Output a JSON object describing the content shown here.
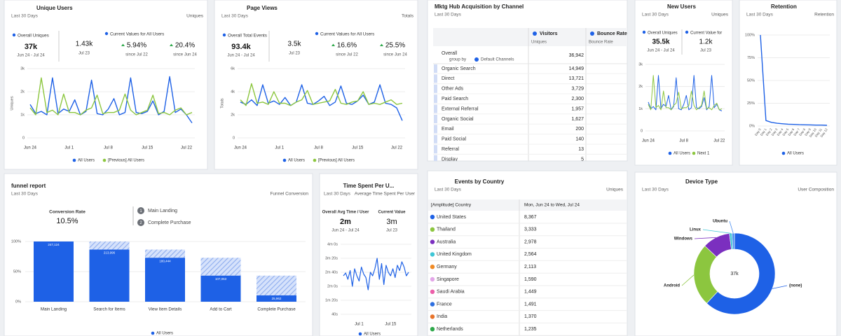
{
  "unique_users": {
    "title": "Unique Users",
    "subtitle": "Last 30 Days",
    "metric_label": "Uniques",
    "overall": {
      "label": "Overall Uniques",
      "value": "37k",
      "range": "Jun 24 - Jul 24"
    },
    "current": {
      "label": "Current Values for All Users",
      "value": "1.43k",
      "date": "Jul 23"
    },
    "changes": [
      {
        "value": "5.94%",
        "since": "since Jul 22"
      },
      {
        "value": "20.4%",
        "since": "since Jun 24"
      }
    ],
    "chart": {
      "type": "line",
      "y_label": "Uniques",
      "categories": [
        "Jun 24",
        null,
        null,
        null,
        null,
        null,
        null,
        "Jul 1",
        null,
        null,
        null,
        null,
        null,
        null,
        "Jul 8",
        null,
        null,
        null,
        null,
        null,
        null,
        "Jul 15",
        null,
        null,
        null,
        null,
        null,
        null,
        "Jul 22",
        null
      ],
      "ylim": [
        0,
        3000
      ],
      "yticks": [
        0,
        {
          "value": 1000,
          "label": "1k"
        },
        {
          "value": 2000,
          "label": "2k"
        },
        {
          "value": 3000,
          "label": "3k"
        }
      ],
      "grid": true,
      "series": [
        {
          "name": "All Users",
          "color": "#1e61e6",
          "values": [
            1450,
            1050,
            1150,
            1000,
            2600,
            1050,
            1250,
            1150,
            1650,
            1000,
            1150,
            2500,
            1050,
            1000,
            1250,
            1700,
            1000,
            1100,
            2600,
            1100,
            1050,
            1150,
            1600,
            1000,
            1150,
            2650,
            1100,
            1250,
            1000,
            650
          ]
        },
        {
          "name": "[Previous] All Users",
          "color": "#8cc63f",
          "values": [
            1300,
            1000,
            2600,
            1100,
            1200,
            1000,
            1900,
            1100,
            1100,
            1000,
            1200,
            1300,
            1850,
            1050,
            1100,
            1100,
            1200,
            1900,
            1200,
            1000,
            1100,
            1200,
            1850,
            1050,
            1100,
            1000,
            1200,
            1300,
            1000,
            1100
          ]
        }
      ]
    }
  },
  "page_views": {
    "title": "Page Views",
    "subtitle": "Last 30 Days",
    "metric_label": "Totals",
    "overall": {
      "label": "Overall Total Events",
      "value": "93.4k",
      "range": "Jun 24 - Jul 24"
    },
    "current": {
      "label": "Current Values for All Users",
      "value": "3.5k",
      "date": "Jul 23"
    },
    "changes": [
      {
        "value": "16.6%",
        "since": "since Jul 22"
      },
      {
        "value": "25.5%",
        "since": "since Jun 24"
      }
    ],
    "chart": {
      "type": "line",
      "y_label": "Totals",
      "categories": [
        "Jun 24",
        null,
        null,
        null,
        null,
        null,
        null,
        "Jul 1",
        null,
        null,
        null,
        null,
        null,
        null,
        "Jul 8",
        null,
        null,
        null,
        null,
        null,
        null,
        "Jul 15",
        null,
        null,
        null,
        null,
        null,
        null,
        "Jul 22",
        null
      ],
      "ylim": [
        0,
        6000
      ],
      "yticks": [
        0,
        {
          "value": 2000,
          "label": "2k"
        },
        {
          "value": 4000,
          "label": "4k"
        },
        {
          "value": 6000,
          "label": "6k"
        }
      ],
      "grid": true,
      "series": [
        {
          "name": "All Users",
          "color": "#1e61e6",
          "values": [
            3100,
            2900,
            3300,
            2800,
            4600,
            3000,
            3200,
            2900,
            3500,
            2800,
            3100,
            4600,
            3000,
            2900,
            3200,
            3600,
            2800,
            3100,
            4500,
            3000,
            2900,
            3200,
            3700,
            2900,
            3100,
            4600,
            3000,
            2900,
            2600,
            1500
          ]
        },
        {
          "name": "[Previous] All Users",
          "color": "#8cc63f",
          "values": [
            3300,
            2800,
            4700,
            3000,
            3100,
            2900,
            4000,
            3000,
            3000,
            2800,
            3100,
            3300,
            4100,
            2900,
            3000,
            3100,
            3200,
            4200,
            3000,
            2900,
            3100,
            3200,
            4000,
            2900,
            3000,
            2900,
            3100,
            3300,
            2900,
            3000
          ]
        }
      ]
    }
  },
  "acquisition": {
    "title": "Mktg Hub Acquisition by Channel",
    "subtitle": "Last 30 Days",
    "columns": [
      {
        "name": "Visitors",
        "sub": "Uniques"
      },
      {
        "name": "Bounce Rate",
        "sub": "Bounce Rate"
      }
    ],
    "overall": {
      "label": "Overall",
      "group_by": "group by",
      "group": "Default Channels",
      "value": "36,942"
    },
    "rows": [
      {
        "name": "Organic Search",
        "value": "14,949"
      },
      {
        "name": "Direct",
        "value": "13,721"
      },
      {
        "name": "Other Ads",
        "value": "3,729"
      },
      {
        "name": "Paid Search",
        "value": "2,300"
      },
      {
        "name": "External Referral",
        "value": "1,957"
      },
      {
        "name": "Organic Social",
        "value": "1,627"
      },
      {
        "name": "Email",
        "value": "200"
      },
      {
        "name": "Paid Social",
        "value": "140"
      },
      {
        "name": "Referral",
        "value": "13"
      },
      {
        "name": "Display",
        "value": "5"
      }
    ]
  },
  "new_users": {
    "title": "New Users",
    "subtitle": "Last 30 Days",
    "metric_label": "Uniques",
    "overall": {
      "label": "Overall Uniques",
      "value": "35.5k",
      "range": "Jun 24 - Jul 24"
    },
    "current": {
      "label": "Current Value for",
      "value": "1.2k",
      "date": "Jul 23"
    },
    "chart": {
      "type": "line",
      "categories": [
        "Jun 24",
        null,
        null,
        null,
        null,
        null,
        null,
        null,
        null,
        null,
        null,
        null,
        null,
        null,
        "Jul 8",
        null,
        null,
        null,
        null,
        null,
        null,
        null,
        null,
        null,
        null,
        null,
        null,
        null,
        "Jul 22",
        null
      ],
      "ylim": [
        0,
        3000
      ],
      "yticks": [
        0,
        {
          "value": 1000,
          "label": "1k"
        },
        {
          "value": 2000,
          "label": "2k"
        },
        {
          "value": 3000,
          "label": "3k"
        }
      ],
      "grid": true,
      "series": [
        {
          "name": "All Users",
          "color": "#1e61e6",
          "values": [
            1300,
            1000,
            1100,
            950,
            2500,
            1000,
            1200,
            1100,
            1600,
            950,
            1100,
            2400,
            1000,
            950,
            1200,
            1600,
            950,
            1050,
            2500,
            1050,
            1000,
            1100,
            1500,
            950,
            1100,
            2500,
            1050,
            1200,
            950,
            900
          ]
        },
        {
          "name": "Next 1",
          "color": "#8cc63f",
          "values": [
            1200,
            950,
            2500,
            1050,
            1150,
            950,
            1800,
            1050,
            1050,
            950,
            1150,
            1250,
            1750,
            1000,
            1050,
            1050,
            1150,
            1800,
            1150,
            950,
            1050,
            1150,
            1800,
            1000,
            1050,
            950,
            1150,
            1250,
            950,
            1000
          ]
        }
      ]
    }
  },
  "retention": {
    "title": "Retention",
    "subtitle": "Last 30 Days",
    "metric_label": "Retention",
    "chart": {
      "type": "line",
      "categories": [
        "Day 0",
        "Day 1",
        "Day 2",
        "Day 3",
        "Day 4",
        "Day 5",
        "Day 6",
        "Day 7",
        "Day 8",
        "Day 9",
        "Day 10",
        "Day 11",
        "Day 12"
      ],
      "ylim": [
        0,
        100
      ],
      "yticks": [
        {
          "value": 0,
          "label": "0%"
        },
        {
          "value": 25,
          "label": "25%"
        },
        {
          "value": 50,
          "label": "50%"
        },
        {
          "value": 75,
          "label": "75%"
        },
        {
          "value": 100,
          "label": "100%"
        }
      ],
      "grid": true,
      "series": [
        {
          "name": "All Users",
          "color": "#1e61e6",
          "values": [
            100,
            6,
            4,
            3,
            2.5,
            2,
            1.8,
            1.5,
            1.3,
            1.2,
            1,
            1,
            0.8
          ]
        }
      ]
    }
  },
  "funnel": {
    "title": "funnel report",
    "subtitle": "Last 30 Days",
    "metric_label": "Funnel Conversion",
    "conversion": {
      "label": "Conversion Rate",
      "value": "10.5%"
    },
    "steps": [
      {
        "number": "1",
        "label": "Main Landing"
      },
      {
        "number": "2",
        "label": "Complete Purchase"
      }
    ],
    "chart": {
      "type": "bar",
      "categories": [
        "Main Landing",
        "Search for Items",
        "View Item Details",
        "Add to Cart",
        "Complete Purchase"
      ],
      "values": [
        100,
        86.6,
        73,
        43.3,
        10.5
      ],
      "count_labels": [
        "247,124",
        "213,996",
        "180,444",
        "107,063",
        "25,962"
      ],
      "ylim": [
        0,
        100
      ],
      "yticks": [
        {
          "value": 0,
          "label": "0%"
        },
        {
          "value": 50,
          "label": "50%"
        },
        {
          "value": 100,
          "label": "100%"
        }
      ],
      "grid": true,
      "color": "#1e61e6",
      "series_name": "All Users"
    }
  },
  "time_spent": {
    "title": "Time Spent Per U...",
    "subtitle": "Last 30 Days",
    "metric_label": "Average Time Spent Per User",
    "overall": {
      "label": "Overall Avg Time / User",
      "value": "2m",
      "range": "Jun 24 - Jul 24"
    },
    "current": {
      "label": "Current Value",
      "value": "3m",
      "date": "Jul 23"
    },
    "chart": {
      "type": "line",
      "categories": [
        null,
        null,
        null,
        null,
        null,
        null,
        null,
        "Jul 1",
        null,
        null,
        null,
        null,
        null,
        null,
        null,
        null,
        null,
        null,
        null,
        null,
        null,
        "Jul 15",
        null,
        null,
        null,
        null,
        null,
        null,
        null,
        null
      ],
      "ylim": [
        40,
        240
      ],
      "yticks": [
        {
          "value": 40,
          "label": "40s"
        },
        {
          "value": 80,
          "label": "1m 20s"
        },
        {
          "value": 120,
          "label": "2m 0s"
        },
        {
          "value": 160,
          "label": "2m 40s"
        },
        {
          "value": 200,
          "label": "3m 20s"
        },
        {
          "value": 240,
          "label": "4m 0s"
        }
      ],
      "grid": true,
      "series": [
        {
          "name": "All Users",
          "color": "#1e61e6",
          "values": [
            150,
            158,
            140,
            165,
            120,
            170,
            150,
            135,
            175,
            155,
            145,
            110,
            160,
            150,
            170,
            200,
            140,
            185,
            125,
            180,
            160,
            150,
            170,
            145,
            180,
            165,
            190,
            175,
            150,
            160
          ]
        }
      ]
    }
  },
  "events_by_country": {
    "title": "Events by Country",
    "subtitle": "Last 30 Days",
    "metric_label": "Uniques",
    "columns": [
      "[Amplitude] Country",
      "Mon, Jun 24 to Wed, Jul 24"
    ],
    "rows": [
      {
        "name": "United States",
        "value": "8,367",
        "color": "#1e61e6"
      },
      {
        "name": "Thailand",
        "value": "3,333",
        "color": "#8cc63f"
      },
      {
        "name": "Australia",
        "value": "2,978",
        "color": "#7b2fbf"
      },
      {
        "name": "United Kingdom",
        "value": "2,564",
        "color": "#3fc6d6"
      },
      {
        "name": "Germany",
        "value": "2,113",
        "color": "#f08a24"
      },
      {
        "name": "Singapore",
        "value": "1,590",
        "color": "#e3a6e8"
      },
      {
        "name": "Saudi Arabia",
        "value": "1,449",
        "color": "#ec5fa9"
      },
      {
        "name": "France",
        "value": "1,491",
        "color": "#2d6fe0"
      },
      {
        "name": "India",
        "value": "1,370",
        "color": "#e8732a"
      },
      {
        "name": "Netherlands",
        "value": "1,235",
        "color": "#2ea84a"
      }
    ]
  },
  "device_type": {
    "title": "Device Type",
    "subtitle": "Last 30 Days",
    "metric_label": "User Composition",
    "chart": {
      "type": "donut",
      "center_label": "37k",
      "categories": [
        "(none)",
        "Android",
        "Windows",
        "Linux",
        "Ubuntu"
      ],
      "values": [
        62,
        25,
        11,
        1,
        1
      ],
      "colors": [
        "#1e61e6",
        "#8cc63f",
        "#7b2fbf",
        "#3fc6d6",
        "#4a8ef0"
      ]
    }
  }
}
